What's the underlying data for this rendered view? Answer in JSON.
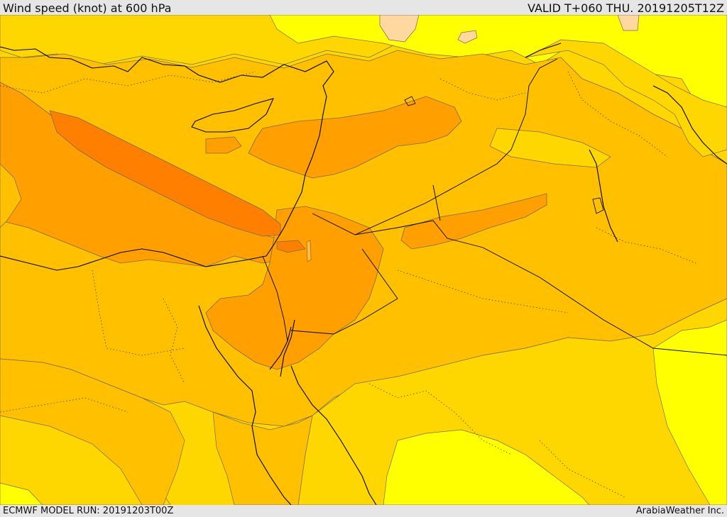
{
  "header": {
    "title": "Wind speed (knot) at 600 hPa",
    "valid": "VALID T+060 THU. 20191205T12Z"
  },
  "footer": {
    "model_run": "ECMWF MODEL RUN: 20191203T00Z",
    "credit": "ArabiaWeather Inc."
  },
  "map": {
    "field": "wind speed 600 hPa",
    "colors": {
      "band_lightest": "#ffff00",
      "band_light": "#ffd700",
      "band_mid": "#ffc000",
      "band_orange": "#ff9f00",
      "band_strong": "#ff7f00",
      "band_peach": "#ffd8a0",
      "contour_line": "#7a6a55",
      "coast_line": "#000000"
    }
  }
}
